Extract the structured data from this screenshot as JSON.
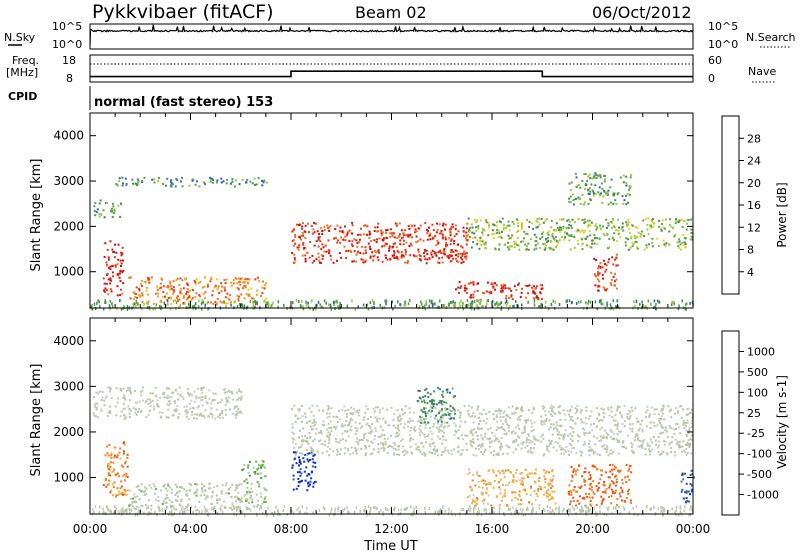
{
  "header": {
    "station": "Pykkvibaer (fitACF)",
    "beam": "Beam 02",
    "date": "06/Oct/2012"
  },
  "noise_panel": {
    "left_label": "N.Sky",
    "left_ticks": [
      "10^5",
      "10^0"
    ],
    "right_ticks": [
      "10^5",
      "10^0"
    ],
    "right_label": "N.Search"
  },
  "freq_panel": {
    "left_label_1": "Freq.",
    "left_label_2": "[MHz]",
    "left_ticks": [
      "18",
      "8"
    ],
    "right_ticks": [
      "60",
      "0"
    ],
    "right_label": "Nave"
  },
  "cpid": {
    "label": "CPID",
    "text": "normal (fast stereo) 153"
  },
  "x_axis": {
    "label": "Time UT",
    "ticks": [
      "00:00",
      "04:00",
      "08:00",
      "12:00",
      "16:00",
      "20:00",
      "00:00"
    ]
  },
  "y_axis": {
    "label": "Slant Range [km]",
    "ticks": [
      "4000",
      "3000",
      "2000",
      "1000"
    ]
  },
  "power_scale": {
    "label": "Power [dB]",
    "ticks": [
      "28",
      "24",
      "20",
      "16",
      "12",
      "8",
      "4"
    ],
    "colors": [
      "#0018e0",
      "#2e5fb0",
      "#3f8a5a",
      "#5aa24a",
      "#9ac83a",
      "#e8d020",
      "#f0a020",
      "#f07020",
      "#e83a1a",
      "#d01010"
    ]
  },
  "velocity_scale": {
    "label": "Velocity [m s-1]",
    "ticks": [
      "1000",
      "500",
      "100",
      "25",
      "-25",
      "-100",
      "-500",
      "-1000"
    ],
    "colors": [
      "#1030c0",
      "#2e5fb0",
      "#3f8a5a",
      "#60b040",
      "#b0c8a0",
      "#c8c8c0",
      "#f0b040",
      "#f08020",
      "#f05010",
      "#e01010"
    ]
  },
  "chart_data": [
    {
      "type": "line",
      "title": "N.Sky / N.Search",
      "x": [
        0,
        1,
        2,
        3,
        4,
        5,
        6,
        7,
        8,
        9,
        10,
        11,
        12,
        13,
        14,
        15,
        16,
        17,
        18,
        19,
        20,
        21,
        22,
        23,
        24
      ],
      "series": [
        {
          "values": [
            10000.0,
            10000.0,
            10000.0,
            10000.0,
            10000.0,
            10000.0,
            10000.0,
            10000.0,
            10000.0,
            10000.0,
            10000.0,
            10000.0,
            10000.0,
            10000.0,
            10000.0,
            10000.0,
            10000.0,
            10000.0,
            10000.0,
            10000.0,
            10000.0,
            10000.0,
            10000.0,
            10000.0,
            10000.0
          ]
        }
      ],
      "xlim": [
        0,
        24
      ]
    },
    {
      "type": "line",
      "title": "Freq / Nave",
      "x": [
        0,
        8,
        8,
        18,
        18,
        24
      ],
      "series": [
        {
          "name": "Freq.",
          "values": [
            10,
            10,
            12,
            12,
            10,
            10
          ]
        },
        {
          "name": "Nave",
          "values": [
            40,
            40,
            40,
            40,
            40,
            40
          ]
        }
      ],
      "xlim": [
        0,
        24
      ],
      "ylim": [
        8,
        18
      ]
    },
    {
      "type": "heatmap",
      "title": "Power [dB]",
      "xlim": [
        0,
        24
      ],
      "ylim": [
        200,
        4500
      ],
      "zlim": [
        0,
        30
      ],
      "regions": [
        {
          "t": [
            0.1,
            1.2
          ],
          "r": [
            2200,
            2600
          ],
          "z": 10
        },
        {
          "t": [
            1.0,
            7.0
          ],
          "r": [
            2900,
            3100
          ],
          "z": 8
        },
        {
          "t": [
            0.5,
            1.3
          ],
          "r": [
            500,
            1700
          ],
          "z": 28
        },
        {
          "t": [
            1.5,
            7.0
          ],
          "r": [
            300,
            900
          ],
          "z": 22
        },
        {
          "t": [
            8.0,
            15.0
          ],
          "r": [
            1200,
            2100
          ],
          "z": 26
        },
        {
          "t": [
            12.0,
            15.0
          ],
          "r": [
            1300,
            1500
          ],
          "z": 28
        },
        {
          "t": [
            14.5,
            18.0
          ],
          "r": [
            400,
            800
          ],
          "z": 28
        },
        {
          "t": [
            15.0,
            24.0
          ],
          "r": [
            1500,
            2200
          ],
          "z": 12
        },
        {
          "t": [
            19.0,
            21.5
          ],
          "r": [
            2500,
            3200
          ],
          "z": 10
        },
        {
          "t": [
            20.0,
            21.0
          ],
          "r": [
            600,
            1400
          ],
          "z": 26
        }
      ]
    },
    {
      "type": "heatmap",
      "title": "Velocity",
      "xlim": [
        0,
        24
      ],
      "ylim": [
        200,
        4500
      ],
      "zlim": [
        -1000,
        1000
      ],
      "regions": [
        {
          "t": [
            0.1,
            6.0
          ],
          "r": [
            2300,
            3000
          ],
          "z": 0
        },
        {
          "t": [
            0.5,
            1.5
          ],
          "r": [
            600,
            1800
          ],
          "z": 500
        },
        {
          "t": [
            1.5,
            7.0
          ],
          "r": [
            300,
            900
          ],
          "z": -80
        },
        {
          "t": [
            6.0,
            7.0
          ],
          "r": [
            900,
            1400
          ],
          "z": -300
        },
        {
          "t": [
            8.0,
            9.0
          ],
          "r": [
            700,
            1600
          ],
          "z": -900
        },
        {
          "t": [
            8.0,
            24.0
          ],
          "r": [
            1500,
            2600
          ],
          "z": 0
        },
        {
          "t": [
            13.0,
            14.5
          ],
          "r": [
            2200,
            3000
          ],
          "z": -500
        },
        {
          "t": [
            15.0,
            18.5
          ],
          "r": [
            400,
            1200
          ],
          "z": 300
        },
        {
          "t": [
            19.0,
            21.5
          ],
          "r": [
            400,
            1300
          ],
          "z": 600
        },
        {
          "t": [
            23.5,
            24.0
          ],
          "r": [
            400,
            1200
          ],
          "z": -700
        }
      ]
    }
  ]
}
